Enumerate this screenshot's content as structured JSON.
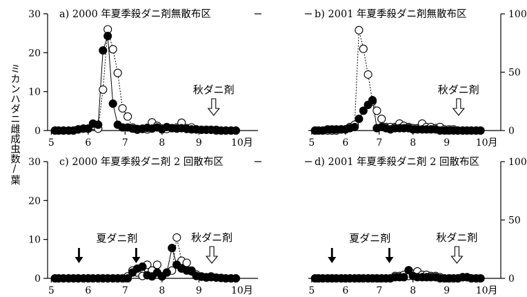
{
  "ylabel": "ミカンハダニ雌成虫数/葉",
  "month_suffix": "月",
  "colors": {
    "ink": "#000000",
    "open_fill": "#ffffff",
    "closed_fill": "#000000"
  },
  "chart_data": [
    {
      "type": "line",
      "panel": "a",
      "title": "a) 2000 年夏季殺ダニ剤無散布区",
      "x_ticks": [
        5,
        6,
        7,
        8,
        9,
        10
      ],
      "xlim": [
        4.9,
        10.6
      ],
      "y_ticks": [
        0,
        10,
        20,
        30
      ],
      "ylim": [
        0,
        30
      ],
      "y_axis_side": "left",
      "series": [
        {
          "marker": "closed",
          "line": "solid",
          "x": [
            5.1,
            5.2,
            5.33,
            5.47,
            5.6,
            5.73,
            5.87,
            6.0,
            6.13,
            6.27,
            6.4,
            6.53,
            6.67,
            6.8,
            6.93,
            7.07,
            7.2,
            7.33,
            7.47,
            7.6,
            7.73,
            7.87,
            8.0,
            8.13,
            8.27,
            8.4,
            8.53,
            8.67,
            8.8,
            8.93,
            9.07,
            9.2,
            9.33,
            9.47,
            9.6,
            9.73,
            9.87,
            10.0
          ],
          "y": [
            0,
            0,
            0,
            0,
            0,
            0.3,
            0.5,
            0.5,
            1.8,
            1.5,
            20.6,
            24.3,
            6.9,
            1.5,
            0.8,
            0.8,
            0.5,
            0.4,
            0.5,
            0.7,
            0.5,
            0.8,
            0.5,
            0.9,
            0.6,
            0.5,
            0.6,
            0.4,
            0.3,
            0.3,
            0.2,
            0.2,
            0.2,
            0.2,
            0,
            0,
            0,
            0
          ]
        },
        {
          "marker": "open",
          "line": "dotted",
          "x": [
            5.1,
            5.2,
            5.33,
            5.47,
            5.6,
            5.73,
            5.87,
            6.0,
            6.13,
            6.27,
            6.4,
            6.53,
            6.67,
            6.8,
            6.93,
            7.07,
            7.2,
            7.33,
            7.47,
            7.6,
            7.73,
            7.87,
            8.0,
            8.13,
            8.27,
            8.4,
            8.53,
            8.67,
            8.8,
            8.93,
            9.07,
            9.2,
            9.33,
            9.47,
            9.6,
            9.73,
            9.87,
            10.0
          ],
          "y": [
            0,
            0,
            0,
            0,
            0,
            0.3,
            0.5,
            0.5,
            1.2,
            0.5,
            10.5,
            26.0,
            20.9,
            14.8,
            5.7,
            3.6,
            0.8,
            0.2,
            0.4,
            0.3,
            2.1,
            1.2,
            0.3,
            0.4,
            0.6,
            0.8,
            2.0,
            0.6,
            0.8,
            0.3,
            0.2,
            0.2,
            0.2,
            0,
            0,
            0,
            0,
            0
          ]
        }
      ],
      "annotations": [
        {
          "text": "秋ダニ剤",
          "arrow": "open",
          "x": 9.4
        }
      ]
    },
    {
      "type": "line",
      "panel": "b",
      "title": "b) 2001 年夏季殺ダニ剤無散布区",
      "x_ticks": [
        5,
        6,
        7,
        8,
        9,
        10
      ],
      "xlim": [
        4.9,
        10.6
      ],
      "y_ticks": [
        0,
        50,
        100
      ],
      "ylim": [
        0,
        100
      ],
      "y_axis_side": "right",
      "series": [
        {
          "marker": "closed",
          "line": "solid",
          "x": [
            5.1,
            5.2,
            5.33,
            5.47,
            5.6,
            5.73,
            5.87,
            6.0,
            6.13,
            6.27,
            6.4,
            6.53,
            6.67,
            6.8,
            6.93,
            7.07,
            7.2,
            7.33,
            7.47,
            7.6,
            7.73,
            7.87,
            8.0,
            8.13,
            8.27,
            8.4,
            8.53,
            8.67,
            8.8,
            8.93,
            9.07,
            9.2,
            9.33,
            9.47,
            9.6,
            9.73,
            9.87,
            10.0
          ],
          "y": [
            0,
            0,
            0,
            1,
            1,
            1,
            1,
            1,
            2,
            3,
            10,
            17,
            22,
            26,
            2,
            3,
            2,
            1,
            2,
            2,
            2,
            2,
            1,
            1,
            1,
            1,
            1,
            1,
            0,
            0,
            0,
            0,
            0,
            0,
            0,
            0,
            0,
            0
          ]
        },
        {
          "marker": "open",
          "line": "dotted",
          "x": [
            5.1,
            5.2,
            5.33,
            5.47,
            5.6,
            5.73,
            5.87,
            6.0,
            6.13,
            6.27,
            6.4,
            6.53,
            6.67,
            6.8,
            6.93,
            7.07,
            7.2,
            7.33,
            7.47,
            7.6,
            7.73,
            7.87,
            8.0,
            8.13,
            8.27,
            8.4,
            8.53,
            8.67,
            8.8,
            8.93,
            9.07,
            9.2,
            9.33,
            9.47,
            9.6,
            9.73,
            9.87,
            10.0
          ],
          "y": [
            0,
            0,
            0,
            0,
            0,
            0,
            1,
            1,
            3,
            5,
            86,
            70,
            48,
            25,
            17,
            10,
            3,
            3,
            3,
            6,
            4,
            3,
            2,
            2,
            6,
            3,
            3,
            2,
            3,
            1,
            1,
            1,
            0,
            0,
            0,
            0,
            0,
            0
          ]
        }
      ],
      "annotations": [
        {
          "text": "秋ダニ剤",
          "arrow": "open",
          "x": 9.35
        }
      ]
    },
    {
      "type": "line",
      "panel": "c",
      "title": "c) 2000 年夏季殺ダニ剤 2 回散布区",
      "x_ticks": [
        5,
        6,
        7,
        8,
        9,
        10
      ],
      "xlim": [
        4.9,
        10.6
      ],
      "y_ticks": [
        0,
        10,
        20,
        30
      ],
      "ylim": [
        0,
        30
      ],
      "y_axis_side": "left",
      "series": [
        {
          "marker": "closed",
          "line": "solid",
          "x": [
            5.1,
            5.2,
            5.33,
            5.47,
            5.6,
            5.73,
            5.87,
            6.0,
            6.13,
            6.27,
            6.4,
            6.53,
            6.67,
            6.8,
            6.93,
            7.07,
            7.2,
            7.33,
            7.47,
            7.6,
            7.73,
            7.87,
            8.0,
            8.13,
            8.27,
            8.4,
            8.53,
            8.67,
            8.8,
            8.93,
            9.07,
            9.2,
            9.33,
            9.47,
            9.6,
            9.73,
            9.87,
            10.0
          ],
          "y": [
            0,
            0,
            0,
            0,
            0,
            0,
            0,
            0,
            0,
            0,
            0,
            0,
            0,
            0,
            0,
            0,
            1.5,
            2.5,
            3.0,
            0.8,
            0.5,
            1.5,
            0.5,
            1.5,
            7.8,
            3.5,
            2.5,
            2.0,
            1.8,
            0.6,
            0.4,
            0.2,
            0.3,
            0.2,
            0.1,
            0,
            0,
            0
          ]
        },
        {
          "marker": "open",
          "line": "dotted",
          "x": [
            5.1,
            5.2,
            5.33,
            5.47,
            5.6,
            5.73,
            5.87,
            6.0,
            6.13,
            6.27,
            6.4,
            6.53,
            6.67,
            6.8,
            6.93,
            7.07,
            7.2,
            7.33,
            7.47,
            7.6,
            7.73,
            7.87,
            8.0,
            8.13,
            8.27,
            8.4,
            8.53,
            8.67,
            8.8,
            8.93,
            9.07,
            9.2,
            9.33,
            9.47,
            9.6,
            9.73,
            9.87,
            10.0
          ],
          "y": [
            0,
            0,
            0,
            0,
            0,
            0,
            0,
            0,
            0,
            0,
            0,
            0,
            0,
            0,
            0,
            0.5,
            2.0,
            1.5,
            0.6,
            3.5,
            2.0,
            3.5,
            0.5,
            1.5,
            2.0,
            10.5,
            4.5,
            4.0,
            2.0,
            1.0,
            0.5,
            0.3,
            0.5,
            0.2,
            0.1,
            0,
            0,
            0
          ]
        }
      ],
      "annotations": [
        {
          "text": "夏ダニ剤",
          "arrow": "closed",
          "x": 5.75
        },
        {
          "text": "",
          "arrow": "closed",
          "x": 7.3
        },
        {
          "text": "秋ダニ剤",
          "arrow": "open",
          "x": 9.35
        }
      ]
    },
    {
      "type": "line",
      "panel": "d",
      "title": "d) 2001 年夏季殺ダニ剤 2 回散布区",
      "x_ticks": [
        5,
        6,
        7,
        8,
        9,
        10
      ],
      "xlim": [
        4.9,
        10.6
      ],
      "y_ticks": [
        0,
        50,
        100
      ],
      "ylim": [
        0,
        100
      ],
      "y_axis_side": "right",
      "series": [
        {
          "marker": "closed",
          "line": "solid",
          "x": [
            5.1,
            5.2,
            5.33,
            5.47,
            5.6,
            5.73,
            5.87,
            6.0,
            6.13,
            6.27,
            6.4,
            6.53,
            6.67,
            6.8,
            6.93,
            7.07,
            7.2,
            7.33,
            7.47,
            7.6,
            7.73,
            7.87,
            8.0,
            8.13,
            8.27,
            8.4,
            8.53,
            8.67,
            8.8,
            8.93,
            9.07,
            9.2,
            9.33,
            9.47,
            9.6,
            9.73,
            9.87,
            10.0
          ],
          "y": [
            0,
            0,
            0,
            0,
            0,
            0,
            0,
            0,
            0,
            0,
            0,
            0,
            0,
            0,
            0,
            0,
            0,
            0,
            1,
            1,
            1,
            7,
            2,
            1,
            1,
            1,
            1,
            1,
            0,
            0,
            0,
            0,
            0,
            1,
            1,
            0,
            0,
            0
          ]
        },
        {
          "marker": "open",
          "line": "dotted",
          "x": [
            5.1,
            5.2,
            5.33,
            5.47,
            5.6,
            5.73,
            5.87,
            6.0,
            6.13,
            6.27,
            6.4,
            6.53,
            6.67,
            6.8,
            6.93,
            7.07,
            7.2,
            7.33,
            7.47,
            7.6,
            7.73,
            7.87,
            8.0,
            8.13,
            8.27,
            8.4,
            8.53,
            8.67,
            8.8,
            8.93,
            9.07,
            9.2,
            9.33,
            9.47,
            9.6,
            9.73,
            9.87,
            10.0
          ],
          "y": [
            0,
            0,
            0,
            0,
            0,
            0,
            0,
            0,
            0,
            0,
            0,
            0,
            0,
            0,
            0,
            0,
            0,
            0,
            2,
            2,
            3,
            2,
            4,
            6,
            3,
            3,
            2,
            2,
            1,
            0,
            0,
            0,
            0,
            1,
            1,
            0,
            0,
            0
          ]
        }
      ],
      "annotations": [
        {
          "text": "夏ダニ剤",
          "arrow": "closed",
          "x": 5.6
        },
        {
          "text": "",
          "arrow": "closed",
          "x": 7.3
        },
        {
          "text": "秋ダニ剤",
          "arrow": "open",
          "x": 9.3
        }
      ]
    }
  ]
}
